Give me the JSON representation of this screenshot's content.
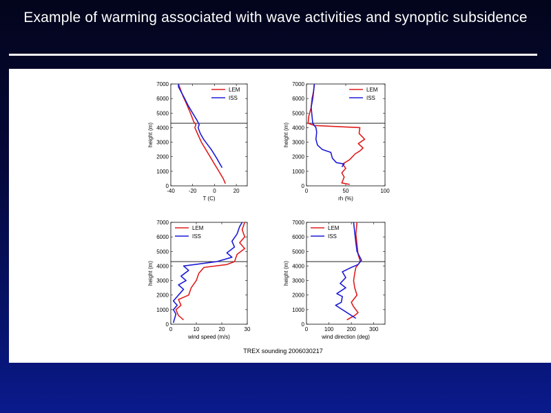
{
  "slide": {
    "title": "Example of warming associated with wave activities and synoptic subsidence",
    "caption": "TREX sounding 2006030217"
  },
  "colors": {
    "lem": "#e01b1b",
    "iss": "#1a1ad6",
    "reference_line": "#000000"
  },
  "chart_data": [
    {
      "type": "line",
      "xlabel": "T (C)",
      "ylabel": "height (m)",
      "xlim": [
        -40,
        30
      ],
      "ylim": [
        0,
        7000
      ],
      "xticks": [
        -40,
        -20,
        0,
        20
      ],
      "yticks": [
        0,
        1000,
        2000,
        3000,
        4000,
        5000,
        6000,
        7000
      ],
      "legend": [
        "LEM",
        "ISS"
      ],
      "legend_position": "top-right",
      "reference_height": 4300,
      "series": [
        {
          "name": "LEM",
          "color": "#e01b1b",
          "points": [
            [
              10,
              150
            ],
            [
              8,
              500
            ],
            [
              4,
              1000
            ],
            [
              0,
              1500
            ],
            [
              -4,
              2000
            ],
            [
              -8,
              2500
            ],
            [
              -12,
              3000
            ],
            [
              -15,
              3500
            ],
            [
              -18,
              4000
            ],
            [
              -17,
              4200
            ],
            [
              -19,
              4400
            ],
            [
              -22,
              5000
            ],
            [
              -26,
              5700
            ],
            [
              -29,
              6200
            ],
            [
              -33,
              7000
            ]
          ]
        },
        {
          "name": "ISS",
          "color": "#1a1ad6",
          "points": [
            [
              7,
              1250
            ],
            [
              5,
              1500
            ],
            [
              2,
              1900
            ],
            [
              -3,
              2500
            ],
            [
              -6,
              2800
            ],
            [
              -10,
              3200
            ],
            [
              -13,
              3600
            ],
            [
              -15,
              4000
            ],
            [
              -14,
              4200
            ],
            [
              -16,
              4500
            ],
            [
              -20,
              5000
            ],
            [
              -24,
              5500
            ],
            [
              -28,
              6100
            ],
            [
              -33,
              6800
            ],
            [
              -33,
              7000
            ]
          ]
        }
      ]
    },
    {
      "type": "line",
      "xlabel": "rh (%)",
      "ylabel": "height (m)",
      "xlim": [
        0,
        100
      ],
      "ylim": [
        0,
        7000
      ],
      "xticks": [
        0,
        50,
        100
      ],
      "yticks": [
        0,
        1000,
        2000,
        3000,
        4000,
        5000,
        6000,
        7000
      ],
      "legend": [
        "LEM",
        "ISS"
      ],
      "legend_position": "top-right",
      "reference_height": 4300,
      "series": [
        {
          "name": "LEM",
          "color": "#e01b1b",
          "points": [
            [
              55,
              100
            ],
            [
              45,
              200
            ],
            [
              48,
              600
            ],
            [
              45,
              900
            ],
            [
              50,
              1200
            ],
            [
              46,
              1500
            ],
            [
              55,
              1800
            ],
            [
              62,
              2200
            ],
            [
              68,
              2400
            ],
            [
              72,
              2600
            ],
            [
              66,
              2900
            ],
            [
              74,
              3200
            ],
            [
              67,
              3600
            ],
            [
              68,
              4000
            ],
            [
              10,
              4150
            ],
            [
              2,
              4300
            ],
            [
              3,
              4800
            ],
            [
              6,
              5400
            ],
            [
              7,
              6000
            ],
            [
              9,
              6500
            ],
            [
              10,
              7000
            ]
          ]
        },
        {
          "name": "ISS",
          "color": "#1a1ad6",
          "points": [
            [
              45,
              1300
            ],
            [
              48,
              1500
            ],
            [
              38,
              1600
            ],
            [
              33,
              1900
            ],
            [
              31,
              2300
            ],
            [
              20,
              2500
            ],
            [
              14,
              2800
            ],
            [
              12,
              3200
            ],
            [
              13,
              3700
            ],
            [
              12,
              4000
            ],
            [
              8,
              4300
            ],
            [
              7,
              4800
            ],
            [
              6,
              5400
            ],
            [
              8,
              6000
            ],
            [
              9,
              6500
            ],
            [
              10,
              7000
            ]
          ]
        }
      ]
    },
    {
      "type": "line",
      "xlabel": "wind speed (m/s)",
      "ylabel": "height (m)",
      "xlim": [
        0,
        30
      ],
      "ylim": [
        0,
        7000
      ],
      "xticks": [
        0,
        10,
        20,
        30
      ],
      "yticks": [
        0,
        1000,
        2000,
        3000,
        4000,
        5000,
        6000,
        7000
      ],
      "legend": [
        "LEM",
        "ISS"
      ],
      "legend_position": "top-left",
      "reference_height": 4300,
      "series": [
        {
          "name": "LEM",
          "color": "#e01b1b",
          "points": [
            [
              5,
              300
            ],
            [
              3,
              600
            ],
            [
              2,
              1000
            ],
            [
              4,
              1300
            ],
            [
              3,
              1700
            ],
            [
              7,
              2000
            ],
            [
              8,
              2500
            ],
            [
              10,
              3000
            ],
            [
              11,
              3500
            ],
            [
              13,
              3900
            ],
            [
              22,
              4100
            ],
            [
              25,
              4300
            ],
            [
              26,
              4800
            ],
            [
              29,
              5200
            ],
            [
              27,
              5600
            ],
            [
              29,
              6000
            ],
            [
              28,
              6500
            ],
            [
              29,
              7000
            ]
          ]
        },
        {
          "name": "ISS",
          "color": "#1a1ad6",
          "points": [
            [
              1,
              100
            ],
            [
              1.5,
              400
            ],
            [
              2,
              700
            ],
            [
              1,
              1000
            ],
            [
              2.5,
              1300
            ],
            [
              1,
              1600
            ],
            [
              3,
              2000
            ],
            [
              5,
              2400
            ],
            [
              3,
              2700
            ],
            [
              6,
              3000
            ],
            [
              4,
              3300
            ],
            [
              7,
              3700
            ],
            [
              5,
              4000
            ],
            [
              18,
              4300
            ],
            [
              24,
              4600
            ],
            [
              22,
              4900
            ],
            [
              25,
              5300
            ],
            [
              24,
              5700
            ],
            [
              26,
              6200
            ],
            [
              27,
              6700
            ],
            [
              28,
              7000
            ]
          ]
        }
      ]
    },
    {
      "type": "line",
      "xlabel": "wind direction (deg)",
      "ylabel": "height (m)",
      "xlim": [
        0,
        350
      ],
      "ylim": [
        0,
        7000
      ],
      "xticks": [
        0,
        100,
        200,
        300
      ],
      "yticks": [
        0,
        1000,
        2000,
        3000,
        4000,
        5000,
        6000,
        7000
      ],
      "legend": [
        "LEM",
        "ISS"
      ],
      "legend_position": "top-left",
      "reference_height": 4300,
      "series": [
        {
          "name": "LEM",
          "color": "#e01b1b",
          "points": [
            [
              180,
              300
            ],
            [
              215,
              600
            ],
            [
              230,
              800
            ],
            [
              210,
              1200
            ],
            [
              200,
              1500
            ],
            [
              225,
              2000
            ],
            [
              215,
              2500
            ],
            [
              210,
              3000
            ],
            [
              215,
              3500
            ],
            [
              220,
              3900
            ],
            [
              240,
              4300
            ],
            [
              230,
              4800
            ],
            [
              225,
              5500
            ],
            [
              220,
              6200
            ],
            [
              225,
              7000
            ]
          ]
        },
        {
          "name": "ISS",
          "color": "#1a1ad6",
          "points": [
            [
              220,
              400
            ],
            [
              180,
              800
            ],
            [
              130,
              1300
            ],
            [
              155,
              1500
            ],
            [
              160,
              1900
            ],
            [
              135,
              2100
            ],
            [
              175,
              2500
            ],
            [
              150,
              2800
            ],
            [
              175,
              3200
            ],
            [
              160,
              3600
            ],
            [
              200,
              3900
            ],
            [
              230,
              4100
            ],
            [
              245,
              4400
            ],
            [
              225,
              5000
            ],
            [
              220,
              5600
            ],
            [
              215,
              6300
            ],
            [
              210,
              7000
            ]
          ]
        }
      ]
    }
  ]
}
